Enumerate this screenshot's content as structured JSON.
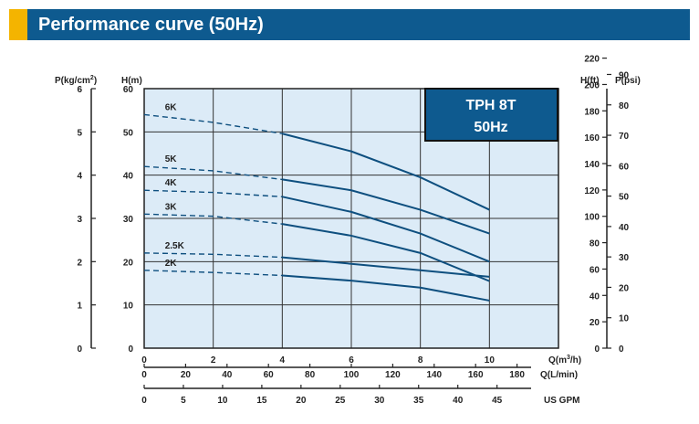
{
  "header": {
    "title": "Performance curve (50Hz)"
  },
  "colors": {
    "header": "#0e5a8f",
    "accent": "#f4b400",
    "plot_bg": "#dcebf7",
    "curve": "#0e4f7f",
    "grid": "#333333"
  },
  "chart_data": {
    "type": "line",
    "title": "",
    "model_box": {
      "line1": "TPH 8T",
      "line2": "50Hz"
    },
    "grid": true,
    "xlim": [
      0,
      12
    ],
    "ylim": [
      0,
      60
    ],
    "axes": {
      "left_outer": {
        "label_main": "P(kg/cm",
        "label_sup": "2",
        "label_close": ")",
        "ticks": [
          "0",
          "1",
          "2",
          "3",
          "4",
          "5",
          "6"
        ],
        "values": [
          0,
          1,
          2,
          3,
          4,
          5,
          6
        ]
      },
      "left_inner": {
        "label": "H(m)",
        "ticks": [
          "0",
          "10",
          "20",
          "30",
          "40",
          "50",
          "60"
        ],
        "values": [
          0,
          10,
          20,
          30,
          40,
          50,
          60
        ]
      },
      "right_inner": {
        "label": "H(ft)",
        "ticks": [
          "0",
          "20",
          "40",
          "60",
          "80",
          "100",
          "120",
          "140",
          "160",
          "180",
          "200",
          "220"
        ],
        "values": [
          0,
          20,
          40,
          60,
          80,
          100,
          120,
          140,
          160,
          180,
          200,
          220
        ]
      },
      "right_outer": {
        "label": "P(psi)",
        "ticks": [
          "0",
          "10",
          "20",
          "30",
          "40",
          "50",
          "60",
          "70",
          "80",
          "90"
        ],
        "values": [
          0,
          10,
          20,
          30,
          40,
          50,
          60,
          70,
          80,
          90
        ]
      },
      "x_m3h": {
        "label_main": "Q(m",
        "label_sup": "3",
        "label_close": "/h)",
        "ticks": [
          "0",
          "2",
          "4",
          "6",
          "8",
          "10"
        ],
        "values": [
          0,
          2,
          4,
          6,
          8,
          10
        ]
      },
      "x_lmin": {
        "label": "Q(L/min)",
        "ticks": [
          "0",
          "20",
          "40",
          "60",
          "80",
          "100",
          "120",
          "140",
          "160",
          "180"
        ],
        "values": [
          0,
          20,
          40,
          60,
          80,
          100,
          120,
          140,
          160,
          180
        ]
      },
      "x_usgpm": {
        "label": "US GPM",
        "ticks": [
          "0",
          "5",
          "10",
          "15",
          "20",
          "25",
          "30",
          "35",
          "40",
          "45"
        ],
        "values": [
          0,
          5,
          10,
          15,
          20,
          25,
          30,
          35,
          40,
          45
        ]
      }
    },
    "series": [
      {
        "name": "6K",
        "dashed": {
          "x": [
            0,
            2,
            4
          ],
          "y": [
            54,
            52.2,
            49.6
          ]
        },
        "solid": {
          "x": [
            4,
            6,
            8,
            10
          ],
          "y": [
            49.6,
            45.5,
            39.5,
            32
          ]
        }
      },
      {
        "name": "5K",
        "dashed": {
          "x": [
            0,
            2,
            4
          ],
          "y": [
            42,
            41,
            39
          ]
        },
        "solid": {
          "x": [
            4,
            6,
            8,
            10
          ],
          "y": [
            39,
            36.5,
            32,
            26.5
          ]
        }
      },
      {
        "name": "4K",
        "dashed": {
          "x": [
            0,
            2,
            4
          ],
          "y": [
            36.5,
            36,
            35
          ]
        },
        "solid": {
          "x": [
            4,
            6,
            8,
            10
          ],
          "y": [
            35,
            31.5,
            26.5,
            20
          ]
        }
      },
      {
        "name": "3K",
        "dashed": {
          "x": [
            0,
            2,
            4
          ],
          "y": [
            31,
            30.5,
            28.7
          ]
        },
        "solid": {
          "x": [
            4,
            6,
            8,
            10
          ],
          "y": [
            28.7,
            26,
            22,
            15.5
          ]
        }
      },
      {
        "name": "2.5K",
        "dashed": {
          "x": [
            0,
            2,
            4
          ],
          "y": [
            22,
            21.7,
            21
          ]
        },
        "solid": {
          "x": [
            4,
            6,
            8,
            10
          ],
          "y": [
            21,
            19.5,
            18,
            16.5
          ]
        }
      },
      {
        "name": "2K",
        "dashed": {
          "x": [
            0,
            2,
            4
          ],
          "y": [
            18,
            17.5,
            16.8
          ]
        },
        "solid": {
          "x": [
            4,
            6,
            8,
            10
          ],
          "y": [
            16.8,
            15.6,
            14,
            11
          ]
        }
      }
    ]
  }
}
